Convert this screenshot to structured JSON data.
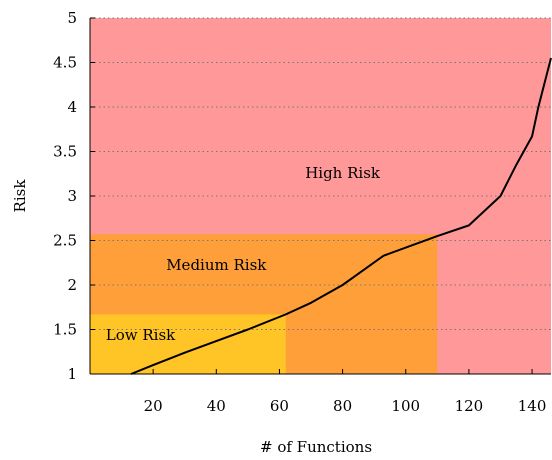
{
  "chart_data": {
    "type": "line",
    "xlabel": "# of Functions",
    "ylabel": "Risk",
    "xlim": [
      0,
      146
    ],
    "ylim": [
      1,
      5
    ],
    "xticks": [
      20,
      40,
      60,
      80,
      100,
      120,
      140
    ],
    "yticks": [
      1,
      1.5,
      2,
      2.5,
      3,
      3.5,
      4,
      4.5,
      5
    ],
    "grid": "horizontal dotted",
    "regions": [
      {
        "label": "High Risk",
        "x": [
          0,
          146
        ],
        "y": [
          1,
          5
        ],
        "color": "#ff9999",
        "label_at": [
          80,
          3.2
        ]
      },
      {
        "label": "Medium Risk",
        "x": [
          0,
          110
        ],
        "y": [
          1,
          2.57
        ],
        "color": "#ff9f3a",
        "label_at": [
          40,
          2.17
        ]
      },
      {
        "label": "Low Risk",
        "x": [
          0,
          62
        ],
        "y": [
          1,
          1.67
        ],
        "color": "#ffc425",
        "label_at": [
          16,
          1.38
        ]
      }
    ],
    "series": [
      {
        "color": "#000000",
        "x": [
          13,
          20,
          30,
          40,
          50,
          62,
          70,
          80,
          93,
          110,
          120,
          130,
          135,
          140,
          142,
          146
        ],
        "y": [
          1,
          1.1,
          1.24,
          1.37,
          1.5,
          1.67,
          1.8,
          2.0,
          2.33,
          2.55,
          2.67,
          3.0,
          3.35,
          3.67,
          4.0,
          4.55
        ]
      }
    ]
  }
}
